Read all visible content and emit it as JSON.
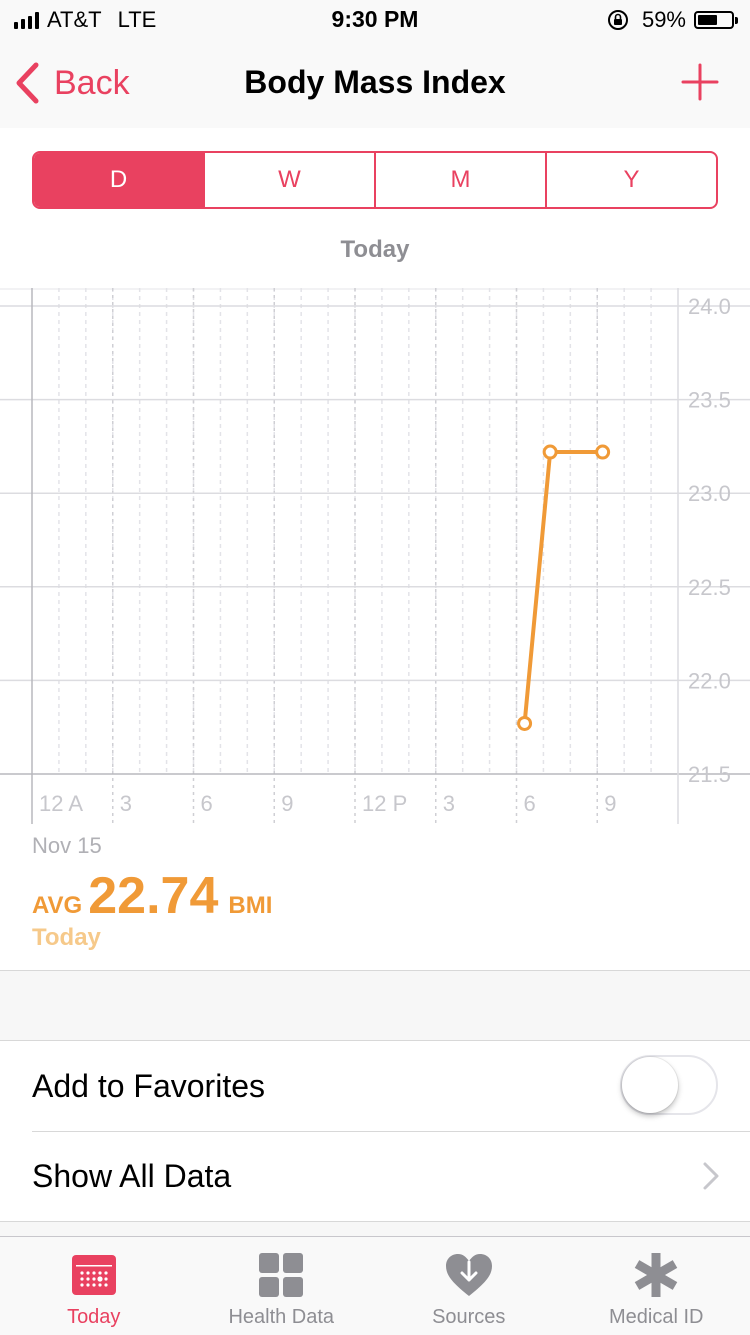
{
  "status_bar": {
    "carrier": "AT&T",
    "network": "LTE",
    "time": "9:30 PM",
    "battery": "59%",
    "battery_level": 0.59
  },
  "nav": {
    "back_label": "Back",
    "title": "Body Mass Index"
  },
  "segments": [
    {
      "label": "D",
      "active": true
    },
    {
      "label": "W",
      "active": false
    },
    {
      "label": "M",
      "active": false
    },
    {
      "label": "Y",
      "active": false
    }
  ],
  "range_label": "Today",
  "chart_data": {
    "type": "line",
    "x_unit": "hour of day",
    "x_ticks": [
      "12 A",
      "3",
      "6",
      "9",
      "12 P",
      "3",
      "6",
      "9"
    ],
    "y_ticks": [
      "24.0",
      "23.5",
      "23.0",
      "22.5",
      "22.0",
      "21.5"
    ],
    "ylim": [
      21.5,
      24.0
    ],
    "xlim": [
      0,
      24
    ],
    "series": [
      {
        "points": [
          {
            "x": 18.3,
            "y": 21.77
          },
          {
            "x": 19.25,
            "y": 23.22
          },
          {
            "x": 21.2,
            "y": 23.22
          }
        ]
      }
    ],
    "color": "#f09a37",
    "grid": true
  },
  "summary": {
    "date": "Nov 15",
    "avg_label": "AVG",
    "avg_value": "22.74",
    "unit": "BMI",
    "period": "Today"
  },
  "list": {
    "favorites_label": "Add to Favorites",
    "favorites_on": false,
    "show_all_label": "Show All Data"
  },
  "tabs": [
    {
      "label": "Today",
      "icon": "calendar-icon",
      "active": true
    },
    {
      "label": "Health Data",
      "icon": "grid-icon",
      "active": false
    },
    {
      "label": "Sources",
      "icon": "heart-download-icon",
      "active": false
    },
    {
      "label": "Medical ID",
      "icon": "asterisk-icon",
      "active": false
    }
  ],
  "colors": {
    "accent": "#e94160",
    "chart": "#f09a37"
  }
}
